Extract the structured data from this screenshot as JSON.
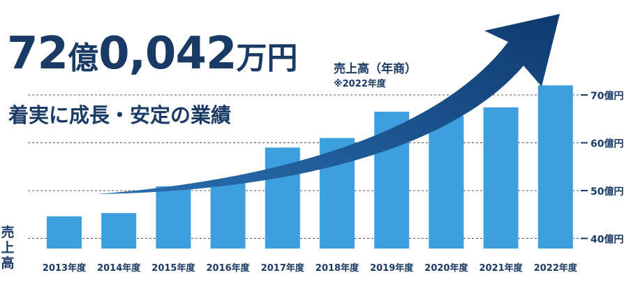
{
  "headline": {
    "n1": "72",
    "u1": "億",
    "n2": "0,042",
    "u2": "万円",
    "label": "売上高（年商）",
    "note": "※2022年度",
    "subtitle": "着実に成長・安定の業績"
  },
  "colors": {
    "bar": "#3e9fdf",
    "navy": "#1a3a66",
    "arrow_dark": "#0e3a6e",
    "arrow_light": "#2a6fb0"
  },
  "chart_data": {
    "type": "bar",
    "categories": [
      "2013年度",
      "2014年度",
      "2015年度",
      "2016年度",
      "2017年度",
      "2018年度",
      "2019年度",
      "2020年度",
      "2021年度",
      "2022年度"
    ],
    "values": [
      44.6,
      45.3,
      50.9,
      52.2,
      59.0,
      61.0,
      66.5,
      65.6,
      67.4,
      72.0
    ],
    "ylabel_chars": [
      "売",
      "上",
      "高"
    ],
    "yticks": [
      {
        "value": 40,
        "label": "40億円"
      },
      {
        "value": 50,
        "label": "50億円"
      },
      {
        "value": 60,
        "label": "60億円"
      },
      {
        "value": 70,
        "label": "70億円"
      }
    ],
    "ylim": [
      35,
      72
    ]
  }
}
